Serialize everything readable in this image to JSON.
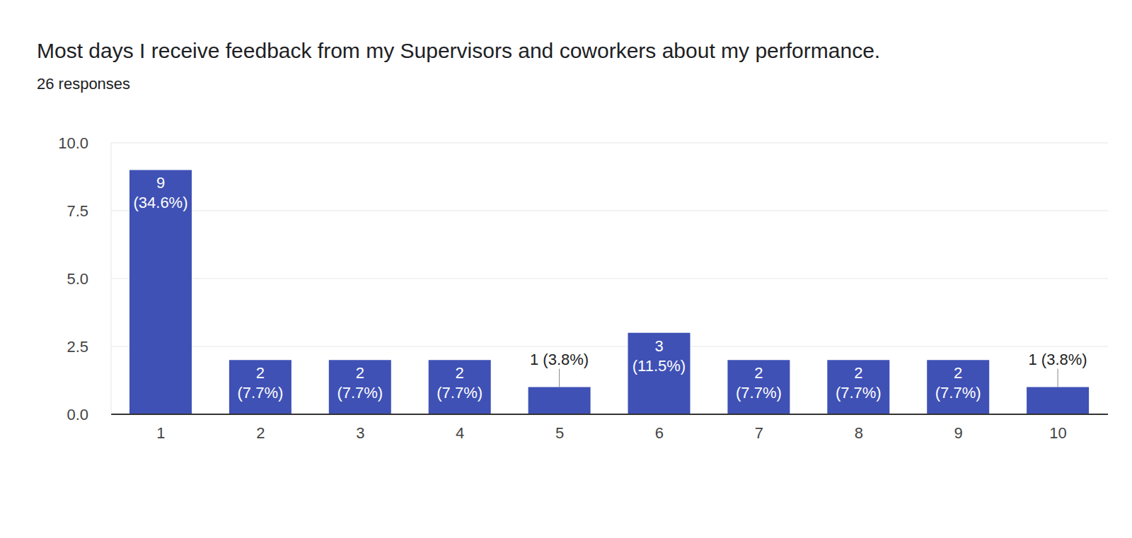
{
  "chart_data": {
    "type": "bar",
    "title": "Most days I receive feedback from my Supervisors and coworkers about my performance.",
    "subtitle": "26 responses",
    "categories": [
      "1",
      "2",
      "3",
      "4",
      "5",
      "6",
      "7",
      "8",
      "9",
      "10"
    ],
    "values": [
      9,
      2,
      2,
      2,
      1,
      3,
      2,
      2,
      2,
      1
    ],
    "value_labels": [
      "9 (34.6%)",
      "2 (7.7%)",
      "2 (7.7%)",
      "2 (7.7%)",
      "1 (3.8%)",
      "3 (11.5%)",
      "2 (7.7%)",
      "2 (7.7%)",
      "2 (7.7%)",
      "1 (3.8%)"
    ],
    "data_labels": true,
    "color": "#3f51b5",
    "ylim": [
      0,
      10
    ],
    "yticks": [
      {
        "value": 0,
        "label": "0.0"
      },
      2.5,
      {
        "value": 5,
        "label": "5.0"
      },
      7.5,
      {
        "value": 10,
        "label": "10.0"
      }
    ],
    "grid": true
  }
}
